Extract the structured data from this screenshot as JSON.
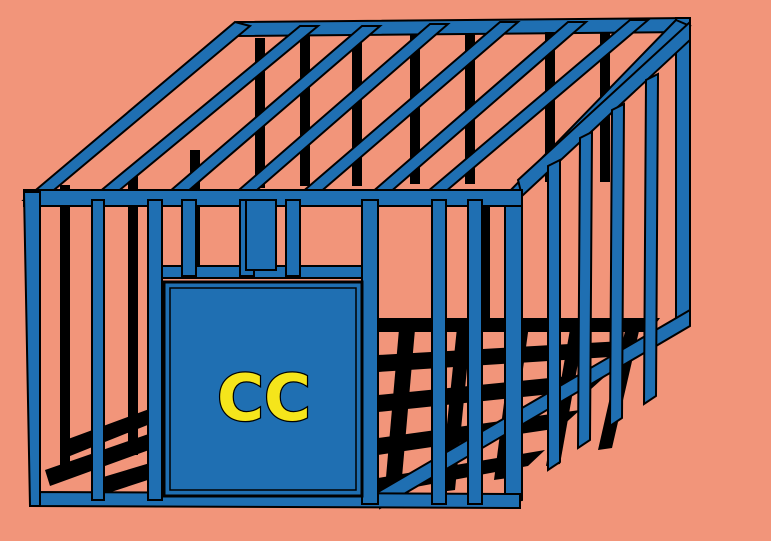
{
  "illustration": {
    "subject": "cage-icon",
    "colors": {
      "background": "#f2957a",
      "bars": "#1f6fb2",
      "outline": "#000000",
      "shadow": "#000000",
      "panel": "#1f6fb2",
      "letters": "#f5e51b"
    },
    "panel_text": "CC"
  }
}
